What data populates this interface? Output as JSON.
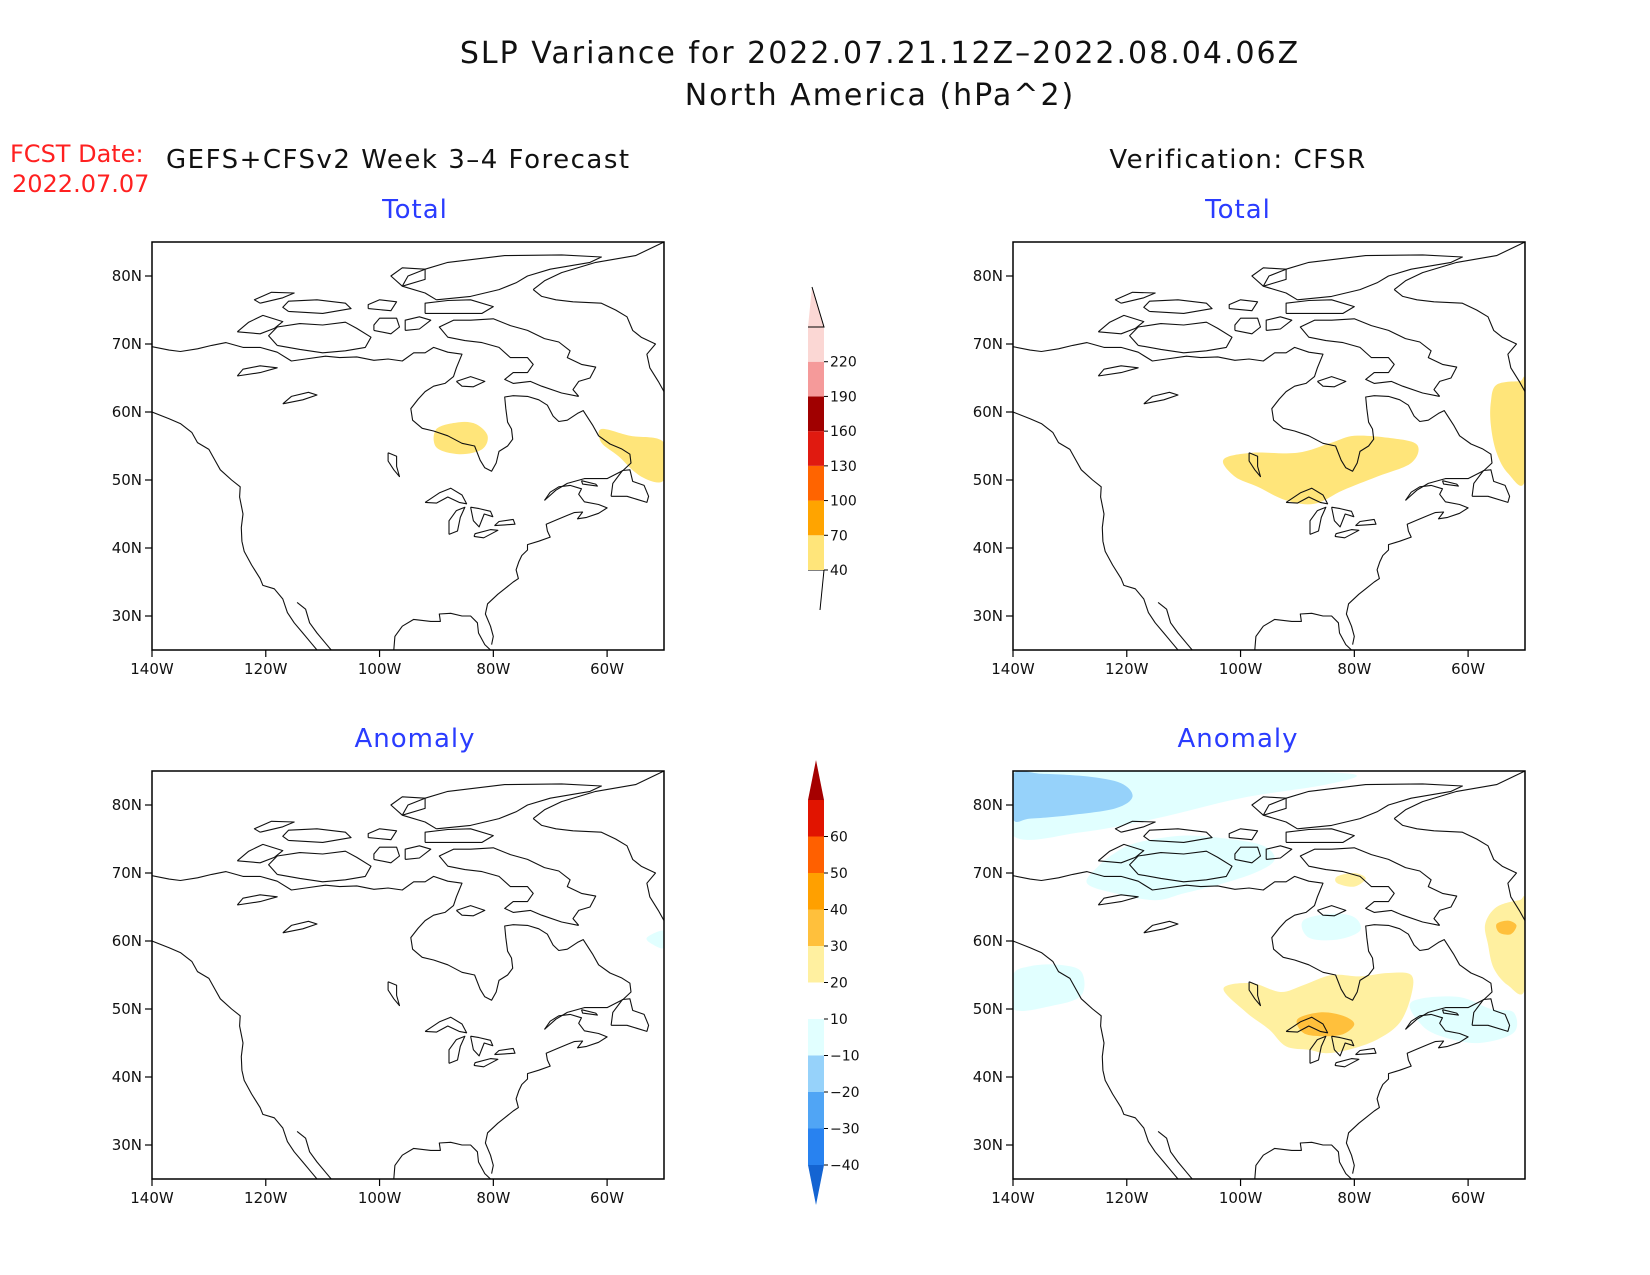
{
  "header": {
    "title_line1": "SLP Variance for 2022.07.21.12Z–2022.08.04.06Z",
    "title_line2": "North America (hPa^2)",
    "fcst_label": "FCST Date:",
    "fcst_date": "2022.07.07",
    "left_column_title": "GEFS+CFSv2 Week 3–4 Forecast",
    "right_column_title": "Verification: CFSR"
  },
  "map": {
    "projection": "lat-lon",
    "lon_ticks": [
      "140W",
      "120W",
      "100W",
      "80W",
      "60W"
    ],
    "lon_tick_values": [
      -140,
      -120,
      -100,
      -80,
      -60
    ],
    "lat_ticks": [
      "80N",
      "70N",
      "60N",
      "50N",
      "40N",
      "30N"
    ],
    "lat_tick_values": [
      80,
      70,
      60,
      50,
      40,
      30
    ],
    "lon_range": [
      -140,
      -50
    ],
    "lat_range": [
      25,
      85
    ]
  },
  "panels": [
    {
      "id": "forecast-total",
      "title": "Total",
      "scale": "total",
      "regions": [
        {
          "level": 40,
          "points": [
            [
              -90,
              57.5
            ],
            [
              -86,
              58.5
            ],
            [
              -83,
              58.2
            ],
            [
              -81,
              56.5
            ],
            [
              -82,
              54.5
            ],
            [
              -86,
              53.8
            ],
            [
              -90,
              54.8
            ]
          ]
        },
        {
          "level": 40,
          "points": [
            [
              -61,
              57.5
            ],
            [
              -56,
              56.5
            ],
            [
              -50,
              55.5
            ],
            [
              -50,
              50
            ],
            [
              -54,
              50.5
            ],
            [
              -58,
              53.5
            ],
            [
              -61,
              55.5
            ]
          ]
        }
      ]
    },
    {
      "id": "forecast-anomaly",
      "title": "Anomaly",
      "scale": "anomaly",
      "regions": [
        {
          "level": -10,
          "points": [
            [
              -53,
              60.5
            ],
            [
              -50,
              61.5
            ],
            [
              -50,
              59
            ],
            [
              -52,
              59.5
            ]
          ]
        }
      ]
    },
    {
      "id": "verification-total",
      "title": "Total",
      "scale": "total",
      "regions": [
        {
          "level": 40,
          "points": [
            [
              -103,
              53
            ],
            [
              -98,
              54
            ],
            [
              -90,
              54
            ],
            [
              -84,
              55.5
            ],
            [
              -80,
              56.5
            ],
            [
              -74,
              56.2
            ],
            [
              -69,
              55.2
            ],
            [
              -70,
              52.5
            ],
            [
              -76,
              50.5
            ],
            [
              -82,
              48.5
            ],
            [
              -87,
              46.5
            ],
            [
              -92,
              47
            ],
            [
              -97,
              49
            ],
            [
              -101,
              50.5
            ]
          ]
        },
        {
          "level": 40,
          "points": [
            [
              -55,
              64
            ],
            [
              -51,
              64.5
            ],
            [
              -50,
              64
            ],
            [
              -50,
              50
            ],
            [
              -53,
              51
            ],
            [
              -55,
              54
            ],
            [
              -56,
              58
            ],
            [
              -56,
              61.5
            ]
          ]
        }
      ]
    },
    {
      "id": "verification-anomaly",
      "title": "Anomaly",
      "scale": "anomaly",
      "regions": [
        {
          "level": -10,
          "points": [
            [
              -140,
              85
            ],
            [
              -135,
              85
            ],
            [
              -115,
              85
            ],
            [
              -95,
              85
            ],
            [
              -80,
              84.5
            ],
            [
              -85,
              83
            ],
            [
              -100,
              81
            ],
            [
              -115,
              78
            ],
            [
              -128,
              76
            ],
            [
              -140,
              75.5
            ]
          ]
        },
        {
          "level": -20,
          "points": [
            [
              -140,
              84.5
            ],
            [
              -135,
              84.6
            ],
            [
              -127,
              84.2
            ],
            [
              -121,
              83.2
            ],
            [
              -119,
              81.2
            ],
            [
              -122,
              79.5
            ],
            [
              -130,
              78.5
            ],
            [
              -137,
              78
            ],
            [
              -140,
              78
            ]
          ]
        },
        {
          "level": -10,
          "points": [
            [
              -118,
              74.5
            ],
            [
              -110,
              75.5
            ],
            [
              -102,
              75
            ],
            [
              -96,
              74
            ],
            [
              -94,
              72
            ],
            [
              -97,
              70.2
            ],
            [
              -103,
              68.5
            ],
            [
              -110,
              67
            ],
            [
              -115,
              66
            ],
            [
              -122,
              67
            ],
            [
              -127,
              68.5
            ],
            [
              -125,
              71
            ],
            [
              -122,
              73
            ]
          ]
        },
        {
          "level": -10,
          "points": [
            [
              -140,
              50
            ],
            [
              -133,
              50.5
            ],
            [
              -128,
              52
            ],
            [
              -128,
              55.5
            ],
            [
              -132,
              56.5
            ],
            [
              -137,
              56.3
            ],
            [
              -140,
              55
            ]
          ]
        },
        {
          "level": -10,
          "points": [
            [
              -89,
              63
            ],
            [
              -84,
              64
            ],
            [
              -80,
              63.5
            ],
            [
              -79,
              61.5
            ],
            [
              -83,
              60.2
            ],
            [
              -88,
              60.5
            ]
          ]
        },
        {
          "level": -10,
          "points": [
            [
              -70,
              51
            ],
            [
              -62,
              51.8
            ],
            [
              -56,
              50
            ],
            [
              -52,
              49.5
            ],
            [
              -52,
              46.5
            ],
            [
              -58,
              45
            ],
            [
              -64,
              45.8
            ],
            [
              -68,
              47.5
            ]
          ]
        },
        {
          "level": 10,
          "points": [
            [
              -103,
              53
            ],
            [
              -98,
              53.8
            ],
            [
              -93,
              52.5
            ],
            [
              -89,
              53.5
            ],
            [
              -84,
              55
            ],
            [
              -79,
              54.8
            ],
            [
              -74,
              55.3
            ],
            [
              -70,
              55
            ],
            [
              -70,
              52
            ],
            [
              -72,
              48
            ],
            [
              -76,
              45.5
            ],
            [
              -81,
              44
            ],
            [
              -85,
              43.5
            ],
            [
              -88,
              44
            ],
            [
              -92,
              44.5
            ],
            [
              -95,
              47
            ],
            [
              -99,
              49.5
            ]
          ]
        },
        {
          "level": 10,
          "points": [
            [
              -83,
              69.5
            ],
            [
              -80,
              70
            ],
            [
              -78,
              69.2
            ],
            [
              -80,
              68
            ],
            [
              -83,
              68.5
            ]
          ]
        },
        {
          "level": 10,
          "points": [
            [
              -55,
              65
            ],
            [
              -51,
              66
            ],
            [
              -50,
              65.5
            ],
            [
              -50,
              53
            ],
            [
              -53,
              53.5
            ],
            [
              -55.5,
              56
            ],
            [
              -56.5,
              59.5
            ],
            [
              -57,
              62.5
            ]
          ]
        },
        {
          "level": 20,
          "points": [
            [
              -90,
              48.5
            ],
            [
              -86,
              49.5
            ],
            [
              -82,
              49
            ],
            [
              -80,
              47.8
            ],
            [
              -82,
              46.3
            ],
            [
              -86,
              46
            ],
            [
              -89,
              46.5
            ]
          ]
        },
        {
          "level": 20,
          "points": [
            [
              -55,
              62.5
            ],
            [
              -53,
              63
            ],
            [
              -51.5,
              62.3
            ],
            [
              -52.5,
              61
            ],
            [
              -54.5,
              61.2
            ]
          ]
        }
      ]
    }
  ],
  "colorbars": {
    "total": {
      "labels": [
        "40",
        "70",
        "100",
        "130",
        "160",
        "190",
        "220"
      ],
      "levels": [
        40,
        70,
        100,
        130,
        160,
        190,
        220
      ],
      "colors": [
        "#ffe57a",
        "#ffa400",
        "#ff6400",
        "#e01a10",
        "#a00000",
        "#f59a9a",
        "#fbd7d4"
      ]
    },
    "anomaly": {
      "labels": [
        "−40",
        "−30",
        "−20",
        "−10",
        "10",
        "20",
        "30",
        "40",
        "50",
        "60"
      ],
      "levels": [
        -40,
        -30,
        -20,
        -10,
        10,
        20,
        30,
        40,
        50,
        60
      ],
      "colors": [
        "#1464d2",
        "#2882f0",
        "#50a5f5",
        "#96d2fa",
        "#e1ffff",
        "#ffffff",
        "#fff0a0",
        "#ffc03c",
        "#ffa000",
        "#ff6000",
        "#e11400",
        "#a50000"
      ]
    }
  }
}
